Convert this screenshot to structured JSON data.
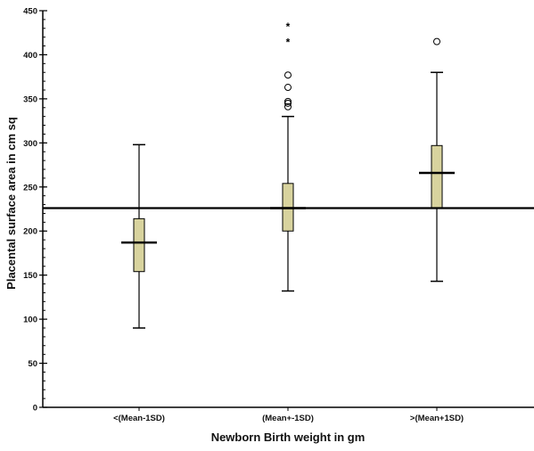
{
  "chart_data": {
    "type": "boxplot",
    "xlabel": "Newborn Birth weight in gm",
    "ylabel": "Placental surface area in cm sq",
    "ylim": [
      0,
      450
    ],
    "y_major_ticks": [
      0,
      50,
      100,
      150,
      200,
      250,
      300,
      350,
      400,
      450
    ],
    "y_minor_step": 10,
    "reference_line": 226,
    "box_fill": "#d8d39e",
    "categories": [
      "<(Mean-1SD)",
      "(Mean+-1SD)",
      ">(Mean+1SD)"
    ],
    "boxes": [
      {
        "category": "<(Mean-1SD)",
        "whisker_low": 90,
        "q1": 154,
        "median": 187,
        "q3": 214,
        "whisker_high": 298,
        "outliers": [],
        "extremes": []
      },
      {
        "category": "(Mean+-1SD)",
        "whisker_low": 132,
        "q1": 200,
        "median": 226,
        "q3": 254,
        "whisker_high": 330,
        "outliers": [
          341,
          345,
          347,
          363,
          377
        ],
        "extremes": [
          415,
          433
        ]
      },
      {
        "category": ">(Mean+1SD)",
        "whisker_low": 143,
        "q1": 226,
        "median": 266,
        "q3": 297,
        "whisker_high": 380,
        "outliers": [
          415
        ],
        "extremes": []
      }
    ]
  }
}
